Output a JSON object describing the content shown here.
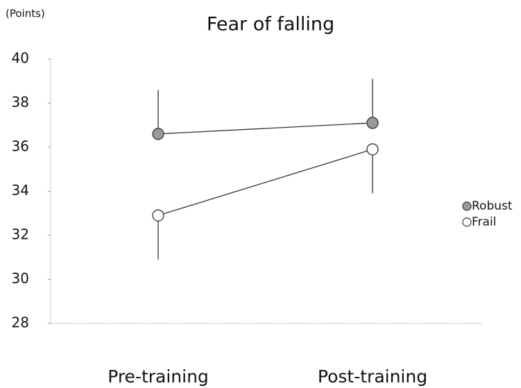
{
  "chart_data": {
    "type": "line",
    "title": "Fear of falling",
    "y_label": "(Points)",
    "categories": [
      "Pre-training",
      "Post-training"
    ],
    "series": [
      {
        "name": "Robust",
        "color": "#9a9a9a",
        "values": [
          36.6,
          37.1
        ],
        "errors": [
          2.0,
          2.0
        ],
        "error_direction": "up"
      },
      {
        "name": "Frail",
        "color": "#ffffff",
        "values": [
          32.9,
          35.9
        ],
        "errors": [
          2.0,
          2.0
        ],
        "error_direction": "down"
      }
    ],
    "ylim": [
      28,
      40
    ],
    "yticks": [
      28,
      30,
      32,
      34,
      36,
      38,
      40
    ],
    "grid": false,
    "legend": "right"
  }
}
